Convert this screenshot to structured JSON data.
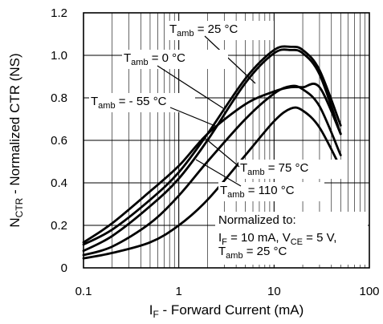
{
  "chart_data": {
    "type": "line",
    "x_scale": "log",
    "grid": true,
    "xlabel": {
      "main": "I",
      "sub": "F",
      "rest": " - Forward Current (mA)"
    },
    "ylabel": {
      "main": "N",
      "sub": "CTR",
      "rest": " - Normalized CTR (NS)"
    },
    "xlim": [
      0.1,
      100
    ],
    "ylim": [
      0,
      1.2
    ],
    "x_ticks": [
      {
        "value": 0.1,
        "label": "0.1"
      },
      {
        "value": 1,
        "label": "1"
      },
      {
        "value": 10,
        "label": "10"
      },
      {
        "value": 100,
        "label": "100"
      }
    ],
    "y_ticks": [
      {
        "value": 0,
        "label": "0"
      },
      {
        "value": 0.2,
        "label": "0.2"
      },
      {
        "value": 0.4,
        "label": "0.4"
      },
      {
        "value": 0.6,
        "label": "0.6"
      },
      {
        "value": 0.8,
        "label": "0.8"
      },
      {
        "value": 1.0,
        "label": "1.0"
      },
      {
        "value": 1.2,
        "label": "1.2"
      }
    ],
    "series": [
      {
        "name": "25 °C",
        "x": [
          0.1,
          0.2,
          0.5,
          1,
          2,
          5,
          10,
          15,
          20,
          30,
          50
        ],
        "y": [
          0.08,
          0.15,
          0.29,
          0.42,
          0.6,
          0.87,
          1.01,
          1.025,
          1.01,
          0.91,
          0.63
        ]
      },
      {
        "name": "0 °C",
        "x": [
          0.1,
          0.2,
          0.5,
          1,
          2,
          5,
          10,
          15,
          20,
          30,
          50
        ],
        "y": [
          0.11,
          0.18,
          0.32,
          0.45,
          0.63,
          0.89,
          1.025,
          1.04,
          1.025,
          0.93,
          0.67
        ]
      },
      {
        "name": "- 55 °C",
        "x": [
          0.1,
          0.2,
          0.5,
          1,
          2,
          5,
          10,
          15,
          20,
          30,
          50
        ],
        "y": [
          0.12,
          0.21,
          0.36,
          0.48,
          0.63,
          0.77,
          0.83,
          0.85,
          0.85,
          0.85,
          0.63
        ]
      },
      {
        "name": "75 °C",
        "x": [
          0.1,
          0.2,
          0.5,
          1,
          2,
          5,
          10,
          15,
          20,
          30,
          50
        ],
        "y": [
          0.06,
          0.1,
          0.21,
          0.34,
          0.5,
          0.7,
          0.82,
          0.855,
          0.84,
          0.76,
          0.53
        ]
      },
      {
        "name": "110 °C",
        "x": [
          0.1,
          0.2,
          0.5,
          1,
          2,
          5,
          10,
          15,
          20,
          30,
          50
        ],
        "y": [
          0.045,
          0.07,
          0.12,
          0.2,
          0.32,
          0.53,
          0.69,
          0.75,
          0.74,
          0.66,
          0.47
        ]
      }
    ],
    "series_labels": [
      {
        "main": "T",
        "sub": "amb",
        "rest": " = 25 °C"
      },
      {
        "main": "T",
        "sub": "amb",
        "rest": " = 0 °C"
      },
      {
        "main": "T",
        "sub": "amb",
        "rest": " = - 55 °C"
      },
      {
        "main": "T",
        "sub": "amb",
        "rest": " = 75 °C"
      },
      {
        "main": "T",
        "sub": "amb",
        "rest": " = 110 °C"
      }
    ],
    "note": {
      "line1": "Normalized to:",
      "line2": {
        "a": "I",
        "a_sub": "F",
        "b": " = 10 mA, V",
        "b_sub": "CE",
        "c": " = 5 V,"
      },
      "line3": {
        "main": "T",
        "sub": "amb",
        "rest": " = 25 °C"
      }
    }
  }
}
